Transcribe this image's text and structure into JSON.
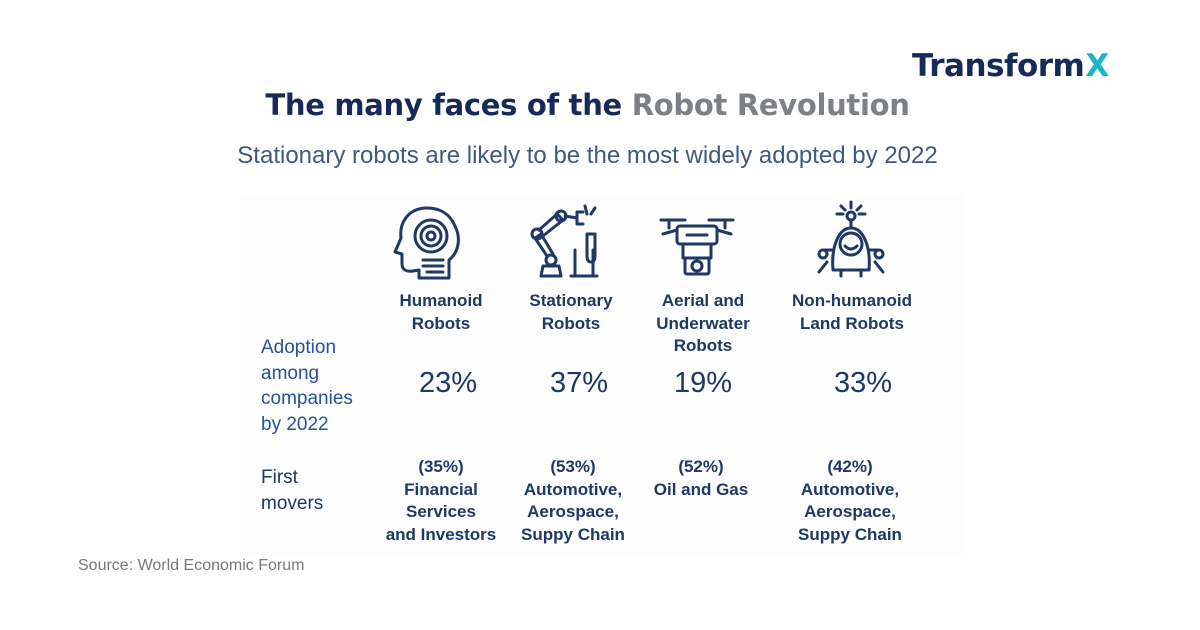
{
  "brand": {
    "name": "Transform",
    "mark": "X"
  },
  "title": {
    "part1": "The many faces of the ",
    "part2": "Robot Revolution"
  },
  "subtitle": "Stationary robots are likely to be the most widely adopted by 2022",
  "row_labels": {
    "adoption": [
      "Adoption",
      "among",
      "companies",
      "by 2022"
    ],
    "first_movers": [
      "First",
      "movers"
    ]
  },
  "categories": [
    {
      "icon": "humanoid-robot-icon",
      "name_lines": [
        "Humanoid",
        "Robots"
      ],
      "adoption": "23%",
      "mover_lines": [
        "(35%)",
        "Financial",
        "Services",
        "and Investors"
      ]
    },
    {
      "icon": "robotic-arm-icon",
      "name_lines": [
        "Stationary",
        "Robots"
      ],
      "adoption": "37%",
      "mover_lines": [
        "(53%)",
        "Automotive,",
        "Aerospace,",
        "Suppy Chain"
      ]
    },
    {
      "icon": "drone-icon",
      "name_lines": [
        "Aerial and",
        "Underwater",
        "Robots"
      ],
      "adoption": "19%",
      "mover_lines": [
        "(52%)",
        "Oil and Gas"
      ]
    },
    {
      "icon": "land-robot-icon",
      "name_lines": [
        "Non-humanoid",
        "Land Robots"
      ],
      "adoption": "33%",
      "mover_lines": [
        "(42%)",
        "Automotive,",
        "Aerospace,",
        "Suppy Chain"
      ]
    }
  ],
  "source": "Source: World Economic Forum",
  "colors": {
    "navy": "#152a57",
    "gray": "#7d8187",
    "subtitle": "#3f5a7e",
    "figure_blue": "#1f3864",
    "label_blue": "#27529a",
    "brand_teal": "#1bb6c1",
    "source_gray": "#787878"
  }
}
